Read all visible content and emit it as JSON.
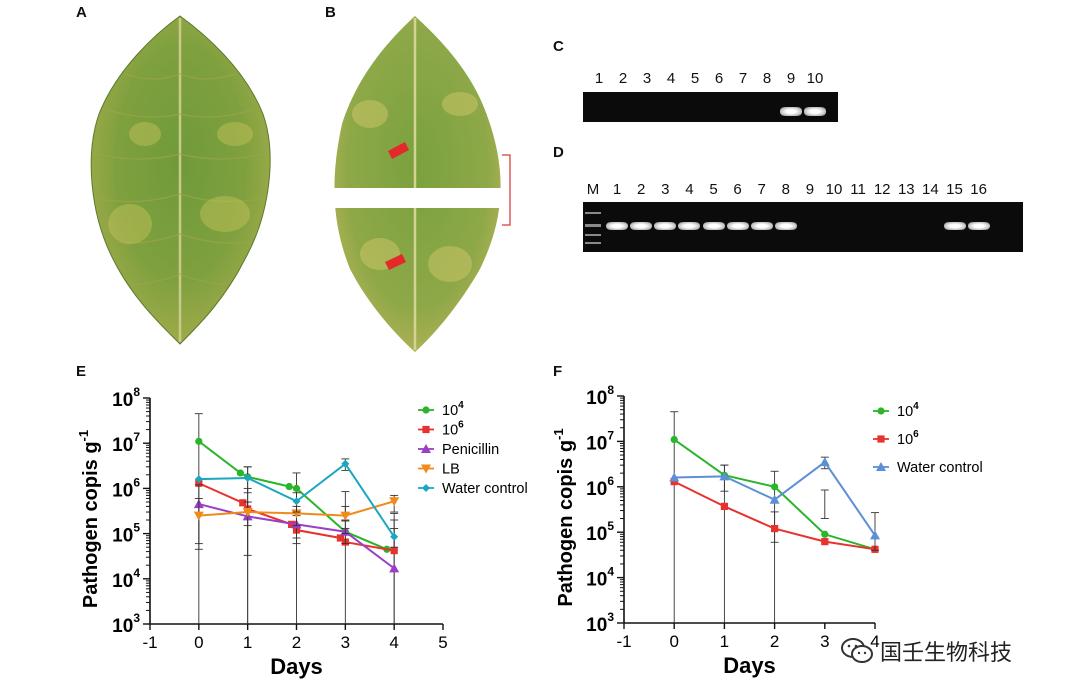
{
  "panels": {
    "A": "A",
    "B": "B",
    "C": "C",
    "D": "D",
    "E": "E",
    "F": "F"
  },
  "gel_c": {
    "lanes": [
      "1",
      "2",
      "3",
      "4",
      "5",
      "6",
      "7",
      "8",
      "9",
      "10"
    ],
    "bands": [
      false,
      false,
      false,
      false,
      false,
      false,
      false,
      false,
      true,
      true
    ]
  },
  "gel_d": {
    "lanes": [
      "M",
      "1",
      "2",
      "3",
      "4",
      "5",
      "6",
      "7",
      "8",
      "9",
      "10",
      "11",
      "12",
      "13",
      "14",
      "15",
      "16"
    ],
    "bands": [
      "marker",
      true,
      true,
      true,
      true,
      true,
      true,
      true,
      true,
      false,
      false,
      false,
      false,
      false,
      false,
      true,
      true
    ]
  },
  "chart_data": [
    {
      "type": "line",
      "panel": "E",
      "xlabel": "Days",
      "ylabel": "Pathogen copis g",
      "ylabel_sup": "-1",
      "yscale": "log",
      "xlim": [
        -1,
        5
      ],
      "ylim": [
        1000,
        100000000
      ],
      "x_ticks": [
        "-1",
        "0",
        "1",
        "2",
        "3",
        "4",
        "5"
      ],
      "y_ticks": [
        {
          "base": "10",
          "exp": "3"
        },
        {
          "base": "10",
          "exp": "4"
        },
        {
          "base": "10",
          "exp": "5"
        },
        {
          "base": "10",
          "exp": "6"
        },
        {
          "base": "10",
          "exp": "7"
        },
        {
          "base": "10",
          "exp": "8"
        }
      ],
      "series": [
        {
          "name": "10",
          "sup": "4",
          "color": "#2ab52a",
          "marker": "circle",
          "x": [
            0,
            0.85,
            1,
            1.85,
            2,
            3,
            3.85,
            4
          ],
          "y": [
            11000000,
            2200000,
            1800000,
            1100000,
            1000000,
            110000,
            45000,
            42000
          ],
          "err": [
            [
              0,
              45000000
            ],
            null,
            [
              0,
              3000000
            ],
            null,
            [
              0,
              2200000
            ],
            [
              190000,
              850000
            ],
            null,
            [
              0,
              280000
            ]
          ]
        },
        {
          "name": "10",
          "sup": "6",
          "color": "#e8322d",
          "marker": "square",
          "x": [
            0,
            0.9,
            1,
            1.9,
            2,
            2.9,
            3,
            4
          ],
          "y": [
            1300000,
            480000,
            350000,
            160000,
            120000,
            80000,
            65000,
            42000
          ],
          "err": [
            null,
            null,
            [
              0,
              500000
            ],
            null,
            [
              60000,
              250000
            ],
            null,
            [
              0,
              130000
            ],
            [
              0,
              200000
            ]
          ]
        },
        {
          "name": "Penicillin",
          "color": "#9b3fc4",
          "marker": "triangle",
          "x": [
            0,
            1,
            2,
            3,
            4
          ],
          "y": [
            450000,
            240000,
            160000,
            110000,
            17000
          ],
          "err": [
            [
              45000,
              1200000
            ],
            [
              33000,
              1000000
            ],
            [
              80000,
              300000
            ],
            [
              60000,
              200000
            ],
            null
          ]
        },
        {
          "name": "LB",
          "color": "#f08a1a",
          "marker": "triangle-down",
          "x": [
            0,
            1,
            2,
            3,
            4
          ],
          "y": [
            250000,
            300000,
            280000,
            250000,
            520000
          ],
          "err": [
            [
              60000,
              600000
            ],
            [
              150000,
              500000
            ],
            [
              150000,
              400000
            ],
            [
              100000,
              400000
            ],
            [
              300000,
              700000
            ]
          ]
        },
        {
          "name": "Water control",
          "color": "#1aa7c0",
          "marker": "diamond",
          "x": [
            0,
            1,
            2,
            3,
            4
          ],
          "y": [
            1600000,
            1700000,
            520000,
            3500000,
            85000
          ],
          "err": [
            null,
            [
              800000,
              3000000
            ],
            [
              300000,
              800000
            ],
            [
              2500000,
              4500000
            ],
            [
              50000,
              130000
            ]
          ]
        }
      ]
    },
    {
      "type": "line",
      "panel": "F",
      "xlabel": "Days",
      "ylabel": "Pathogen copis g",
      "ylabel_sup": "-1",
      "yscale": "log",
      "xlim": [
        -1,
        4
      ],
      "ylim": [
        1000,
        100000000
      ],
      "x_ticks": [
        "-1",
        "0",
        "1",
        "2",
        "3",
        "4"
      ],
      "y_ticks": [
        {
          "base": "10",
          "exp": "3"
        },
        {
          "base": "10",
          "exp": "4"
        },
        {
          "base": "10",
          "exp": "5"
        },
        {
          "base": "10",
          "exp": "6"
        },
        {
          "base": "10",
          "exp": "7"
        },
        {
          "base": "10",
          "exp": "8"
        }
      ],
      "series": [
        {
          "name": "10",
          "sup": "4",
          "color": "#2ab52a",
          "marker": "circle",
          "x": [
            0,
            1,
            2,
            3,
            4
          ],
          "y": [
            11000000,
            1800000,
            1000000,
            90000,
            42000
          ],
          "err": [
            [
              0,
              45000000
            ],
            [
              0,
              3000000
            ],
            [
              0,
              2200000
            ],
            [
              200000,
              850000
            ],
            null
          ]
        },
        {
          "name": "10",
          "sup": "6",
          "color": "#e8322d",
          "marker": "square",
          "x": [
            0,
            1,
            2,
            3,
            4
          ],
          "y": [
            1300000,
            370000,
            120000,
            62000,
            42000
          ],
          "err": [
            null,
            null,
            [
              60000,
              280000
            ],
            null,
            null
          ]
        },
        {
          "name": "Water control",
          "color": "#5b8fd6",
          "marker": "triangle",
          "x": [
            0,
            1,
            2,
            3,
            4
          ],
          "y": [
            1600000,
            1700000,
            520000,
            3500000,
            85000
          ],
          "err": [
            null,
            [
              800000,
              3000000
            ],
            null,
            [
              2500000,
              4500000
            ],
            [
              40000,
              270000
            ]
          ]
        }
      ]
    }
  ],
  "watermark": {
    "text": "国壬生物科技",
    "icon": "wechat-icon"
  }
}
